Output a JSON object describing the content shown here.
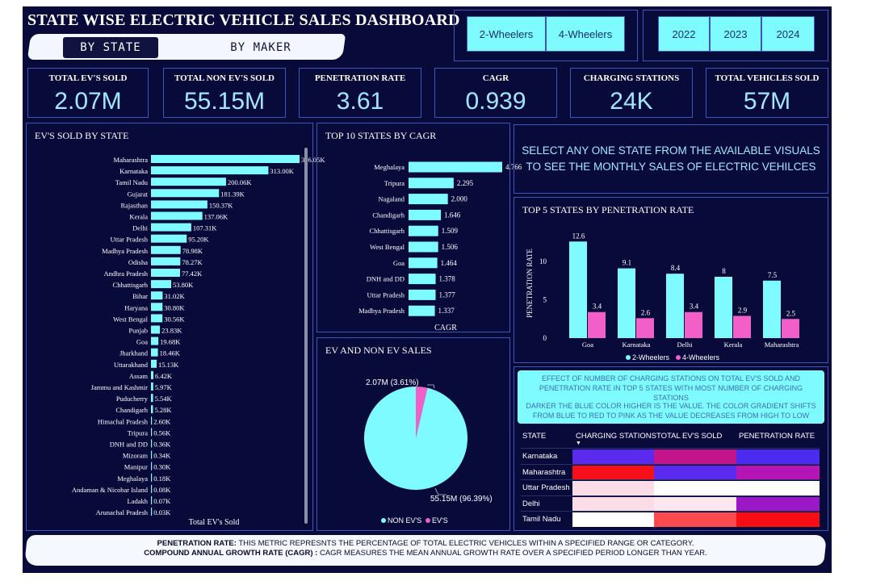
{
  "header": {
    "title": "STATE WISE ELECTRIC VEHICLE SALES DASHBOARD",
    "tabs": [
      {
        "label": "BY STATE",
        "active": true
      },
      {
        "label": "BY MAKER",
        "active": false
      }
    ],
    "vehicle_type_slicer": [
      "2-Wheelers",
      "4-Wheelers"
    ],
    "year_slicer": [
      "2022",
      "2023",
      "2024"
    ]
  },
  "kpis": [
    {
      "label": "TOTAL EV'S SOLD",
      "value": "2.07M"
    },
    {
      "label": "TOTAL NON EV'S SOLD",
      "value": "55.15M"
    },
    {
      "label": "PENETRATION RATE",
      "value": "3.61"
    },
    {
      "label": "CAGR",
      "value": "0.939"
    },
    {
      "label": "CHARGING STATIONS",
      "value": "24K"
    },
    {
      "label": "TOTAL VEHICLES SOLD",
      "value": "57M"
    }
  ],
  "colors": {
    "background": "#080a3a",
    "cyan": "#7dfbff",
    "pink": "#f25fc8",
    "border": "#3f56b8"
  },
  "instruction_text": "SELECT ANY ONE STATE FROM THE AVAILABLE VISUALS TO SEE THE MONTHLY SALES OF ELECTRIC VEHILCES",
  "heatmap": {
    "note1": "EFFECT OF NUMBER OF CHARGING STATIONS ON TOTAL EV'S SOLD AND PENETRATION RATE IN TOP 5 STATES WITH MOST NUMBER OF CHARGING STATIONS",
    "note2": "DARKER THE BLUE COLOR HIGHER IS THE VALUE. THE COLOR GRADIENT SHIFTS FROM BLUE TO RED TO PINK AS THE VALUE DECREASES FROM HIGH TO LOW",
    "headers": [
      "STATE",
      "CHARGING STATIONS",
      "TOTAL EV'S SOLD",
      "PENETRATION RATE"
    ],
    "rows": [
      {
        "state": "Karnataka",
        "colors": [
          "#5a2bef",
          "#c4148c",
          "#4b2bf0"
        ]
      },
      {
        "state": "Maharashtra",
        "colors": [
          "#f5101a",
          "#5a2bef",
          "#b415b4"
        ]
      },
      {
        "state": "Uttar Pradesh",
        "colors": [
          "#fbdde8",
          "#ffffff",
          "#ffffff"
        ]
      },
      {
        "state": "Delhi",
        "colors": [
          "#fbdde8",
          "#fde7ee",
          "#9b18c8"
        ]
      },
      {
        "state": "Tamil Nadu",
        "colors": [
          "#ffffff",
          "#fc4a4e",
          "#f80d14"
        ]
      }
    ]
  },
  "footer": {
    "line1_term": "PENETRATION RATE:",
    "line1_text": " THIS METRIC REPRESNTS THE PERCENTAGE OF TOTAL ELECTRIC VEHICLES WITHIN A SPECIFIED RANGE OR CATEGORY.",
    "line2_term": "COMPOUND ANNUAL GROWTH RATE (CAGR) :",
    "line2_text": " CAGR MEASURES THE MEAN ANNUAL GROWTH RATE OVER A SPECIFIED PERIOD LONGER THAN YEAR."
  },
  "chart_data": [
    {
      "id": "ev_by_state",
      "type": "bar",
      "orientation": "horizontal",
      "title": "EV'S SOLD BY STATE",
      "xlabel": "Total EV's Sold",
      "categories": [
        "Maharashtra",
        "Karnataka",
        "Tamil Nadu",
        "Gujarat",
        "Rajasthan",
        "Kerala",
        "Delhi",
        "Uttar Pradesh",
        "Madhya Pradesh",
        "Odisha",
        "Andhra Pradesh",
        "Chhattisgarh",
        "Bihar",
        "Haryana",
        "West Bengal",
        "Punjab",
        "Goa",
        "Jharkhand",
        "Uttarakhand",
        "Assam",
        "Jammu and Kashmir",
        "Puducherry",
        "Chandigarh",
        "Himachal Pradesh",
        "Tripura",
        "DNH and DD",
        "Mizoram",
        "Manipur",
        "Meghalaya",
        "Andaman & Nicobar Island",
        "Ladakh",
        "Arunachal Pradesh"
      ],
      "values": [
        396.05,
        313.0,
        200.06,
        181.39,
        150.37,
        137.06,
        107.31,
        95.2,
        78.98,
        78.27,
        77.42,
        53.8,
        31.02,
        30.8,
        30.56,
        23.83,
        19.68,
        18.46,
        15.13,
        6.42,
        5.97,
        5.54,
        5.28,
        2.6,
        0.56,
        0.36,
        0.34,
        0.3,
        0.18,
        0.08,
        0.07,
        0.03
      ],
      "labels": [
        "396.05K",
        "313.00K",
        "200.06K",
        "181.39K",
        "150.37K",
        "137.06K",
        "107.31K",
        "95.20K",
        "78.98K",
        "78.27K",
        "77.42K",
        "53.80K",
        "31.02K",
        "30.80K",
        "30.56K",
        "23.83K",
        "19.68K",
        "18.46K",
        "15.13K",
        "6.42K",
        "5.97K",
        "5.54K",
        "5.28K",
        "2.60K",
        "0.56K",
        "0.36K",
        "0.34K",
        "0.30K",
        "0.18K",
        "0.08K",
        "0.07K",
        "0.03K"
      ],
      "unit": "K",
      "color": "#7dfbff"
    },
    {
      "id": "top10_cagr",
      "type": "bar",
      "orientation": "horizontal",
      "title": "TOP 10 STATES BY CAGR",
      "xlabel": "CAGR",
      "categories": [
        "Meghalaya",
        "Tripura",
        "Nagaland",
        "Chandigarh",
        "Chhattisgarh",
        "West Bengal",
        "Goa",
        "DNH and DD",
        "Uttar Pradesh",
        "Madhya Pradesh"
      ],
      "values": [
        4.766,
        2.295,
        2.0,
        1.646,
        1.509,
        1.506,
        1.464,
        1.378,
        1.377,
        1.337
      ],
      "labels": [
        "4.766",
        "2.295",
        "2.000",
        "1.646",
        "1.509",
        "1.506",
        "1.464",
        "1.378",
        "1.377",
        "1.337"
      ],
      "color": "#7dfbff"
    },
    {
      "id": "penetration_top5",
      "type": "bar",
      "title": "TOP 5 STATES BY PENETRATION RATE",
      "ylabel": "PENETRATION RATE",
      "categories": [
        "Goa",
        "Karnataka",
        "Delhi",
        "Kerala",
        "Maharashtra"
      ],
      "series": [
        {
          "name": "2-Wheelers",
          "values": [
            12.6,
            9.1,
            8.4,
            8.0,
            7.5
          ],
          "color": "#7dfbff"
        },
        {
          "name": "4-Wheelers",
          "values": [
            3.4,
            2.6,
            3.4,
            2.9,
            2.5
          ],
          "color": "#f25fc8"
        }
      ],
      "yticks": [
        "0",
        "5",
        "10"
      ],
      "ylim": [
        0,
        14
      ],
      "legend": "bottom"
    },
    {
      "id": "ev_vs_nonev",
      "type": "pie",
      "title": "EV AND NON EV SALES",
      "slices": [
        {
          "name": "NON EV'S",
          "value": 55.15,
          "label": "55.15M (96.39%)",
          "color": "#7dfbff"
        },
        {
          "name": "EV'S",
          "value": 2.07,
          "label": "2.07M (3.61%)",
          "color": "#f25fc8"
        }
      ],
      "legend": "bottom"
    }
  ]
}
